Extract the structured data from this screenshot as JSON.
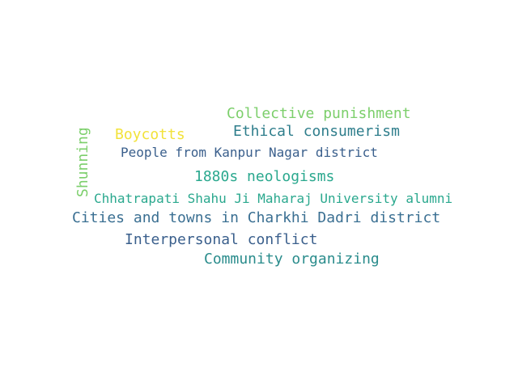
{
  "words": [
    {
      "text": "Collective punishment",
      "color": "#7ccf6b"
    },
    {
      "text": "Ethical consumerism",
      "color": "#2f7e8c"
    },
    {
      "text": "Boycotts",
      "color": "#f2e23a"
    },
    {
      "text": "Shunning",
      "color": "#7ccf6b"
    },
    {
      "text": "People from Kanpur Nagar district",
      "color": "#3a5f8c"
    },
    {
      "text": "1880s neologisms",
      "color": "#2aa88e"
    },
    {
      "text": "Chhatrapati Shahu Ji Maharaj University alumni",
      "color": "#2aa88e"
    },
    {
      "text": "Cities and towns in Charkhi Dadri district",
      "color": "#3a6f92"
    },
    {
      "text": "Interpersonal conflict",
      "color": "#3a5f8c"
    },
    {
      "text": "Community organizing",
      "color": "#2a8c8c"
    }
  ]
}
